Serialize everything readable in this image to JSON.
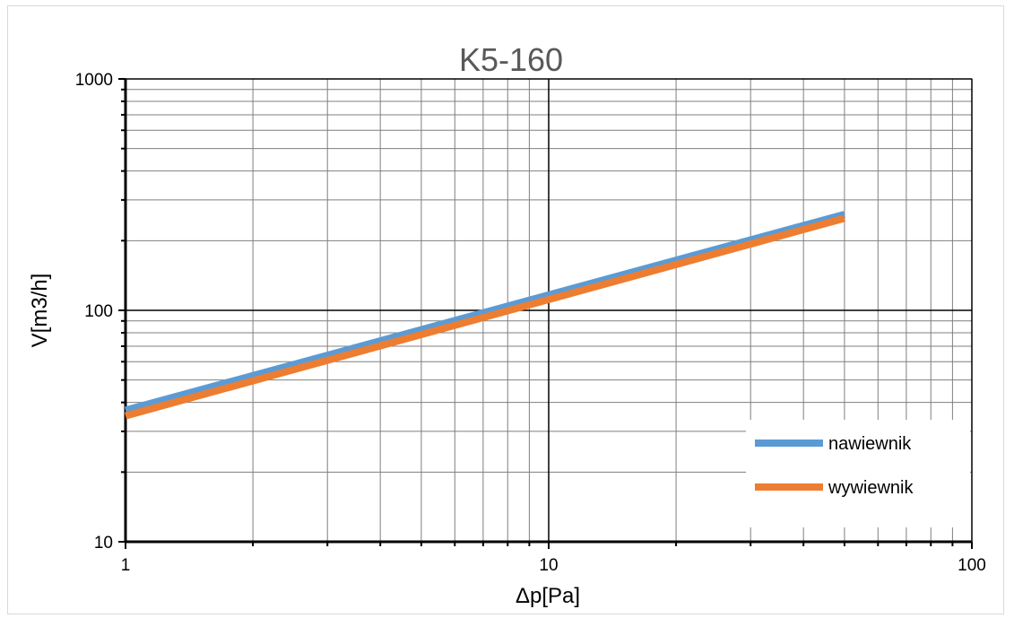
{
  "chart_data": {
    "type": "line",
    "title": "K5-160",
    "xlabel": "Δp[Pa]",
    "ylabel": "V[m3/h]",
    "xscale": "log",
    "yscale": "log",
    "xlim": [
      1,
      100
    ],
    "ylim": [
      10,
      1000
    ],
    "x_ticks": [
      1,
      10,
      100
    ],
    "x_tick_labels": [
      "1",
      "10",
      "100"
    ],
    "y_ticks": [
      10,
      100,
      1000
    ],
    "y_tick_labels": [
      "10",
      "100",
      "1000"
    ],
    "grid": true,
    "legend_position": "bottom-right",
    "series": [
      {
        "name": "nawiewnik",
        "color": "#5b9bd5",
        "x": [
          1,
          50
        ],
        "y": [
          37,
          260
        ]
      },
      {
        "name": "wywiewnik",
        "color": "#ed7d31",
        "x": [
          1,
          50
        ],
        "y": [
          35,
          250
        ]
      }
    ]
  }
}
